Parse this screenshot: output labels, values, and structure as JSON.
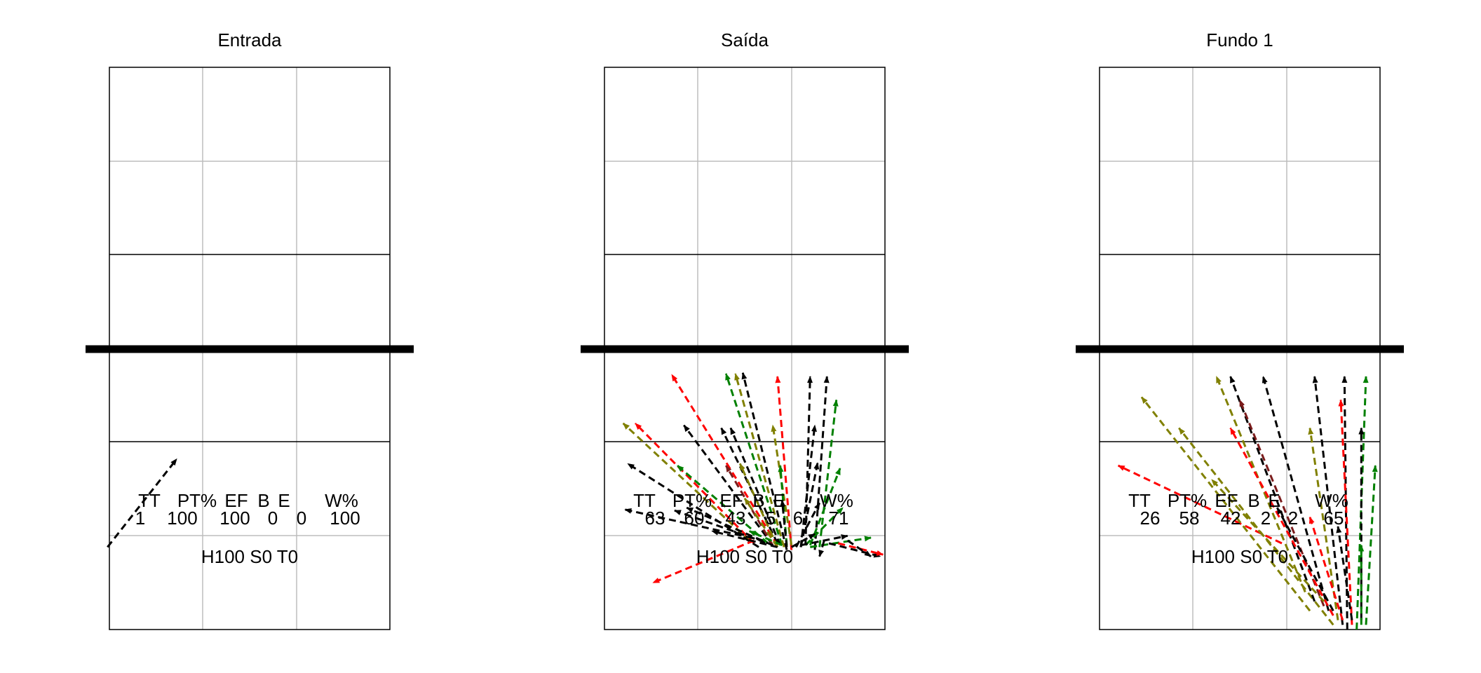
{
  "chart_data": [
    {
      "type": "arrow-field",
      "title": "Entrada",
      "condition": "H100 S0 T0",
      "stats_header": [
        "TT",
        "PT%",
        "EF",
        "B",
        "E",
        "W%"
      ],
      "stats_values": [
        "1",
        "100",
        "100",
        "0",
        "0",
        "100"
      ],
      "grid": true,
      "arrows": [
        {
          "x0": -0.02,
          "y0": 0.88,
          "x1": 0.72,
          "y1": 1.82,
          "color": "#000000"
        }
      ]
    },
    {
      "type": "arrow-field",
      "title": "Saída",
      "condition": "H100 S0 T0",
      "stats_header": [
        "TT",
        "PT%",
        "EF",
        "B",
        "E",
        "W%"
      ],
      "stats_values": [
        "63",
        "60",
        "43",
        "5",
        "6",
        "71"
      ],
      "grid": true,
      "arrows": [
        {
          "x0": 1.85,
          "y0": 0.9,
          "x1": 0.72,
          "y1": 2.72,
          "color": "#ff0000"
        },
        {
          "x0": 1.55,
          "y0": 0.95,
          "x1": 0.2,
          "y1": 2.2,
          "color": "#808000"
        },
        {
          "x0": 1.6,
          "y0": 0.92,
          "x1": 0.33,
          "y1": 2.2,
          "color": "#ff0000"
        },
        {
          "x0": 1.65,
          "y0": 0.88,
          "x1": 0.25,
          "y1": 1.77,
          "color": "#000000"
        },
        {
          "x0": 1.7,
          "y0": 0.95,
          "x1": 0.22,
          "y1": 1.28,
          "color": "#000000"
        },
        {
          "x0": 1.72,
          "y0": 0.93,
          "x1": 0.75,
          "y1": 1.27,
          "color": "#000000"
        },
        {
          "x0": 1.6,
          "y0": 0.95,
          "x1": 0.52,
          "y1": 0.5,
          "color": "#ff0000"
        },
        {
          "x0": 1.9,
          "y0": 0.9,
          "x1": 1.3,
          "y1": 2.73,
          "color": "#008000"
        },
        {
          "x0": 1.95,
          "y0": 0.85,
          "x1": 1.48,
          "y1": 2.74,
          "color": "#000000"
        },
        {
          "x0": 1.92,
          "y0": 0.88,
          "x1": 1.4,
          "y1": 2.73,
          "color": "#808000"
        },
        {
          "x0": 2.0,
          "y0": 0.85,
          "x1": 1.85,
          "y1": 2.7,
          "color": "#ff0000"
        },
        {
          "x0": 2.15,
          "y0": 0.9,
          "x1": 2.2,
          "y1": 2.7,
          "color": "#000000"
        },
        {
          "x0": 2.25,
          "y0": 0.85,
          "x1": 2.38,
          "y1": 2.7,
          "color": "#000000"
        },
        {
          "x0": 2.3,
          "y0": 0.88,
          "x1": 2.48,
          "y1": 2.45,
          "color": "#008000"
        },
        {
          "x0": 1.8,
          "y0": 0.9,
          "x1": 0.85,
          "y1": 2.18,
          "color": "#000000"
        },
        {
          "x0": 1.85,
          "y0": 0.92,
          "x1": 1.25,
          "y1": 2.15,
          "color": "#000000"
        },
        {
          "x0": 1.88,
          "y0": 0.9,
          "x1": 1.35,
          "y1": 2.15,
          "color": "#000000"
        },
        {
          "x0": 2.0,
          "y0": 0.9,
          "x1": 1.8,
          "y1": 2.18,
          "color": "#808000"
        },
        {
          "x0": 2.1,
          "y0": 0.88,
          "x1": 2.25,
          "y1": 2.18,
          "color": "#000000"
        },
        {
          "x0": 1.75,
          "y0": 0.92,
          "x1": 0.78,
          "y1": 1.75,
          "color": "#008000"
        },
        {
          "x0": 1.8,
          "y0": 0.9,
          "x1": 1.3,
          "y1": 1.75,
          "color": "#7b1c1c"
        },
        {
          "x0": 1.85,
          "y0": 0.88,
          "x1": 1.45,
          "y1": 1.77,
          "color": "#808000"
        },
        {
          "x0": 1.95,
          "y0": 0.9,
          "x1": 1.88,
          "y1": 1.75,
          "color": "#008000"
        },
        {
          "x0": 2.1,
          "y0": 0.88,
          "x1": 2.28,
          "y1": 1.78,
          "color": "#000000"
        },
        {
          "x0": 2.2,
          "y0": 0.9,
          "x1": 2.52,
          "y1": 1.72,
          "color": "#008000"
        },
        {
          "x0": 1.8,
          "y0": 0.9,
          "x1": 0.88,
          "y1": 1.3,
          "color": "#000000"
        },
        {
          "x0": 1.85,
          "y0": 0.88,
          "x1": 1.5,
          "y1": 1.4,
          "color": "#808000"
        },
        {
          "x0": 1.95,
          "y0": 0.88,
          "x1": 1.9,
          "y1": 1.38,
          "color": "#000000"
        },
        {
          "x0": 2.05,
          "y0": 0.88,
          "x1": 2.3,
          "y1": 1.35,
          "color": "#000000"
        },
        {
          "x0": 2.15,
          "y0": 0.9,
          "x1": 2.55,
          "y1": 1.3,
          "color": "#008000"
        },
        {
          "x0": 1.85,
          "y0": 0.88,
          "x1": 1.15,
          "y1": 1.05,
          "color": "#000000"
        },
        {
          "x0": 1.9,
          "y0": 0.9,
          "x1": 1.55,
          "y1": 1.05,
          "color": "#008000"
        },
        {
          "x0": 2.0,
          "y0": 0.88,
          "x1": 2.25,
          "y1": 1.02,
          "color": "#000000"
        },
        {
          "x0": 2.1,
          "y0": 0.9,
          "x1": 2.6,
          "y1": 1.0,
          "color": "#000000"
        },
        {
          "x0": 2.2,
          "y0": 0.88,
          "x1": 2.85,
          "y1": 0.98,
          "color": "#008000"
        },
        {
          "x0": 2.4,
          "y0": 0.92,
          "x1": 2.95,
          "y1": 0.78,
          "color": "#000000"
        },
        {
          "x0": 2.5,
          "y0": 0.92,
          "x1": 2.98,
          "y1": 0.8,
          "color": "#ff0000"
        },
        {
          "x0": 2.6,
          "y0": 0.95,
          "x1": 2.85,
          "y1": 0.78,
          "color": "#000000"
        },
        {
          "x0": 2.35,
          "y0": 0.95,
          "x1": 2.3,
          "y1": 0.78,
          "color": "#000000"
        }
      ]
    },
    {
      "type": "arrow-field",
      "title": "Fundo 1",
      "condition": "H100 S0 T0",
      "stats_header": [
        "TT",
        "PT%",
        "EF",
        "B",
        "E",
        "W%"
      ],
      "stats_values": [
        "26",
        "58",
        "42",
        "2",
        "2",
        "65"
      ],
      "grid": true,
      "arrows": [
        {
          "x0": 1.95,
          "y0": 0.92,
          "x1": 0.2,
          "y1": 1.75,
          "color": "#ff0000"
        },
        {
          "x0": 2.25,
          "y0": 0.2,
          "x1": 0.45,
          "y1": 2.48,
          "color": "#808000"
        },
        {
          "x0": 2.5,
          "y0": 0.05,
          "x1": 0.85,
          "y1": 2.15,
          "color": "#808000"
        },
        {
          "x0": 2.2,
          "y0": 0.4,
          "x1": 1.25,
          "y1": 2.7,
          "color": "#808000"
        },
        {
          "x0": 2.3,
          "y0": 0.3,
          "x1": 1.4,
          "y1": 2.7,
          "color": "#000000"
        },
        {
          "x0": 2.4,
          "y0": 0.25,
          "x1": 1.5,
          "y1": 2.45,
          "color": "#7b1c1c"
        },
        {
          "x0": 2.45,
          "y0": 0.2,
          "x1": 1.75,
          "y1": 2.7,
          "color": "#000000"
        },
        {
          "x0": 2.5,
          "y0": 0.15,
          "x1": 1.4,
          "y1": 2.15,
          "color": "#ff0000"
        },
        {
          "x0": 2.55,
          "y0": 0.1,
          "x1": 2.25,
          "y1": 2.15,
          "color": "#808000"
        },
        {
          "x0": 2.6,
          "y0": 0.05,
          "x1": 2.3,
          "y1": 2.7,
          "color": "#000000"
        },
        {
          "x0": 2.65,
          "y0": 0.0,
          "x1": 2.62,
          "y1": 2.7,
          "color": "#000000"
        },
        {
          "x0": 2.7,
          "y0": 0.05,
          "x1": 2.58,
          "y1": 2.45,
          "color": "#ff0000"
        },
        {
          "x0": 2.75,
          "y0": 0.0,
          "x1": 2.85,
          "y1": 2.7,
          "color": "#008000"
        },
        {
          "x0": 2.8,
          "y0": 0.1,
          "x1": 2.8,
          "y1": 2.15,
          "color": "#000000"
        },
        {
          "x0": 2.85,
          "y0": 0.05,
          "x1": 2.95,
          "y1": 1.75,
          "color": "#008000"
        },
        {
          "x0": 2.4,
          "y0": 0.3,
          "x1": 1.2,
          "y1": 1.6,
          "color": "#808000"
        },
        {
          "x0": 2.5,
          "y0": 0.2,
          "x1": 1.9,
          "y1": 1.3,
          "color": "#000000"
        },
        {
          "x0": 2.6,
          "y0": 0.1,
          "x1": 2.25,
          "y1": 1.2,
          "color": "#ff0000"
        },
        {
          "x0": 2.7,
          "y0": 0.1,
          "x1": 2.55,
          "y1": 1.1,
          "color": "#000000"
        },
        {
          "x0": 2.8,
          "y0": 0.05,
          "x1": 2.8,
          "y1": 0.9,
          "color": "#008000"
        }
      ]
    }
  ]
}
